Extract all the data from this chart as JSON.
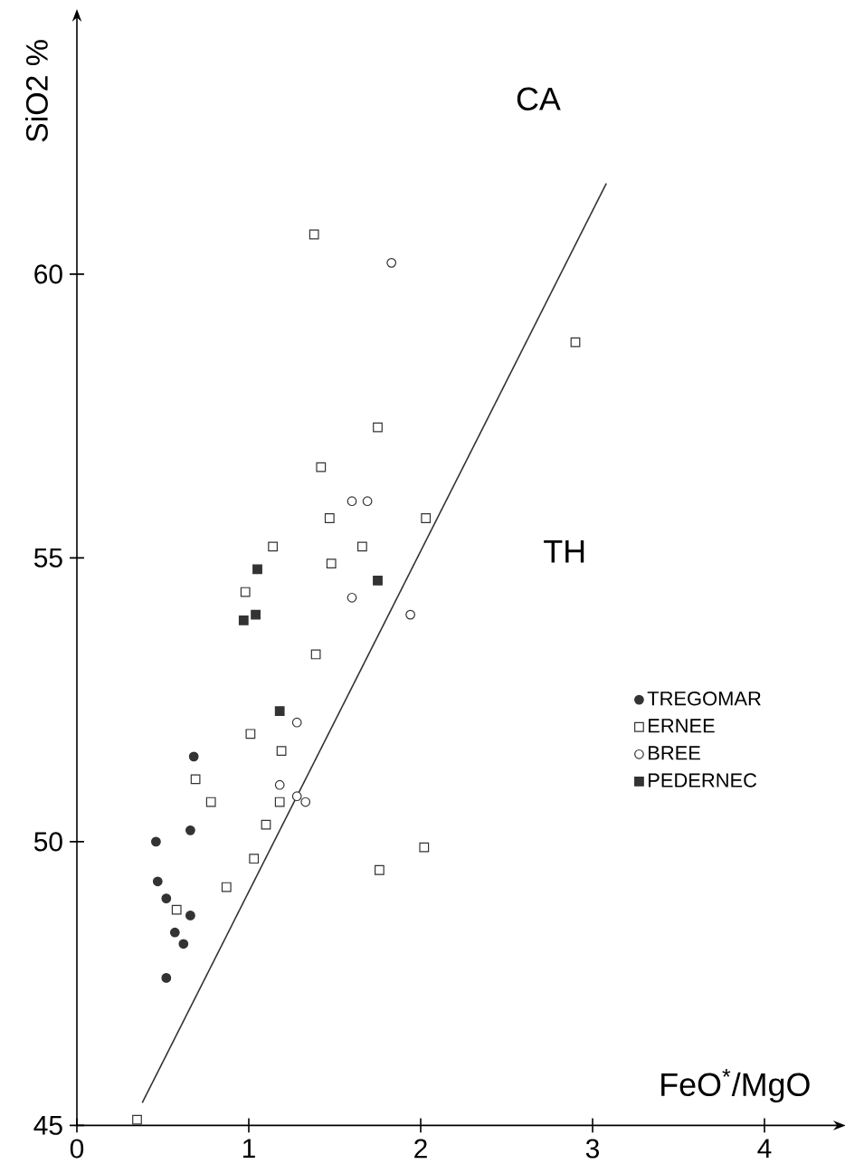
{
  "chart_data": {
    "type": "scatter",
    "xlabel": "FeO$^{*}$/MgO",
    "ylabel": "SiO2 %",
    "xlim": [
      0,
      4.4
    ],
    "ylim": [
      45,
      64.45
    ],
    "xticks": [
      0,
      1,
      2,
      3,
      4
    ],
    "yticks": [
      45,
      50,
      55,
      60
    ],
    "grid": false,
    "legend": "right",
    "annotations": [
      "CA",
      "TH"
    ],
    "series": [
      {
        "name": "TREGOMAR",
        "color": "#333333",
        "marker": "circle",
        "x": [
          0.68,
          0.46,
          0.66,
          0.47,
          0.52,
          0.66,
          0.57,
          0.62,
          0.52
        ],
        "values": [
          51.5,
          50.0,
          50.2,
          49.3,
          49.0,
          48.7,
          48.4,
          48.2,
          47.6
        ]
      },
      {
        "name": "ERNEE",
        "color": "#ffffff",
        "marker": "square",
        "x": [
          1.38,
          2.9,
          1.75,
          1.42,
          1.47,
          2.03,
          1.14,
          1.66,
          1.48,
          0.98,
          1.39,
          1.01,
          1.19,
          0.69,
          0.78,
          1.18,
          1.1,
          2.02,
          1.03,
          1.76,
          0.87,
          0.58,
          0.35
        ],
        "values": [
          60.7,
          58.8,
          57.3,
          56.6,
          55.7,
          55.7,
          55.2,
          55.2,
          54.9,
          54.4,
          53.3,
          51.9,
          51.6,
          51.1,
          50.7,
          50.7,
          50.3,
          49.9,
          49.7,
          49.5,
          49.2,
          48.8,
          45.1
        ]
      },
      {
        "name": "BREE",
        "color": "#ffffff",
        "marker": "circle",
        "x": [
          1.83,
          1.6,
          1.69,
          1.6,
          1.94,
          1.28,
          1.18,
          1.28,
          1.33
        ],
        "values": [
          60.2,
          56.0,
          56.0,
          54.3,
          54.0,
          52.1,
          51.0,
          50.8,
          50.7
        ]
      },
      {
        "name": "PEDERNEC",
        "color": "#333333",
        "marker": "square",
        "x": [
          1.05,
          1.75,
          1.04,
          0.97,
          1.18
        ],
        "values": [
          54.8,
          54.6,
          54.0,
          53.9,
          52.3
        ]
      },
      {
        "type": "line",
        "color": "#333333",
        "marker": "none",
        "line_style": "solid",
        "x": [
          0.38,
          3.08
        ],
        "values": [
          45.4,
          61.6
        ]
      }
    ]
  }
}
